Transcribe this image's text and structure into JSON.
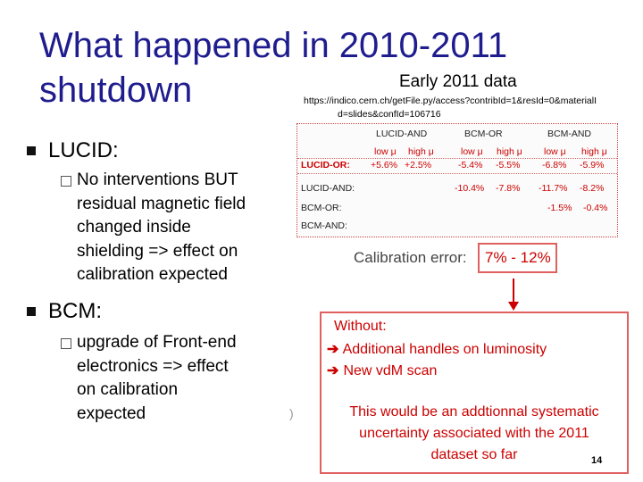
{
  "slide": {
    "title_line1": "What happened in 2010-2011",
    "title_line2": "shutdown"
  },
  "bullets": [
    {
      "label": "LUCID:",
      "sub": [
        "No interventions BUT",
        "residual magnetic field",
        "changed inside",
        "shielding => effect on",
        "calibration expected"
      ]
    },
    {
      "label": "BCM:",
      "sub": [
        "upgrade of Front-end",
        "electronics => effect",
        "on calibration",
        "expected"
      ]
    }
  ],
  "figure": {
    "heading": "Early 2011 data",
    "url_line1": "https://indico.cern.ch/getFile.py/access?contribId=1&resId=0&materialI",
    "url_line2": "d=slides&confId=106716",
    "table": {
      "groups": [
        "LUCID-AND",
        "BCM-OR",
        "BCM-AND"
      ],
      "subheaders": [
        "low μ",
        "high μ",
        "low μ",
        "high μ",
        "low μ",
        "high μ"
      ],
      "rows": [
        {
          "label": "LUCID-OR:",
          "values": [
            "+5.6%",
            "+2.5%",
            "-5.4%",
            "-5.5%",
            "-6.8%",
            "-5.9%"
          ]
        },
        {
          "label": "LUCID-AND:",
          "values": [
            "",
            "",
            "-10.4%",
            "-7.8%",
            "-11.7%",
            "-8.2%"
          ]
        },
        {
          "label": "BCM-OR:",
          "values": [
            "",
            "",
            "",
            "",
            "-1.5%",
            "-0.4%"
          ]
        },
        {
          "label": "BCM-AND:",
          "values": [
            "",
            "",
            "",
            "",
            "",
            ""
          ]
        }
      ]
    },
    "calibration_label": "Calibration error:",
    "calibration_value": "7% - 12%",
    "box": {
      "line1": "Without:",
      "item1": "Additional handles on luminosity",
      "item2": "New vdM scan",
      "text1": "This would be an addtionnal systematic",
      "text2": "uncertainty associated with the 2011",
      "text3": "dataset so far"
    },
    "paren": ")"
  },
  "page_number": "14",
  "colors": {
    "title": "#1f1d8e",
    "accent": "#cc0000"
  }
}
